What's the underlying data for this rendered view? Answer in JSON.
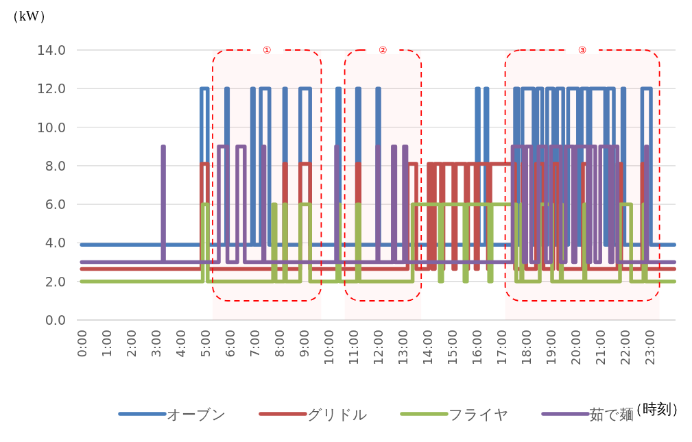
{
  "chart_data": {
    "type": "line",
    "ylabel": "（kW）",
    "xlabel": "（時刻）",
    "xlim": [
      -0.2,
      24.05
    ],
    "ylim": [
      0,
      14
    ],
    "xticks": [
      {
        "value": 0,
        "label": "0:00"
      },
      {
        "value": 1,
        "label": "1:00"
      },
      {
        "value": 2,
        "label": "2:00"
      },
      {
        "value": 3,
        "label": "3:00"
      },
      {
        "value": 4,
        "label": "4:00"
      },
      {
        "value": 5,
        "label": "5:00"
      },
      {
        "value": 6,
        "label": "6:00"
      },
      {
        "value": 7,
        "label": "7:00"
      },
      {
        "value": 8,
        "label": "8:00"
      },
      {
        "value": 9,
        "label": "9:00"
      },
      {
        "value": 10,
        "label": "10:00"
      },
      {
        "value": 11,
        "label": "11:00"
      },
      {
        "value": 12,
        "label": "12:00"
      },
      {
        "value": 13,
        "label": "13:00"
      },
      {
        "value": 14,
        "label": "14:00"
      },
      {
        "value": 15,
        "label": "15:00"
      },
      {
        "value": 16,
        "label": "16:00"
      },
      {
        "value": 17,
        "label": "17:00"
      },
      {
        "value": 18,
        "label": "18:00"
      },
      {
        "value": 19,
        "label": "19:00"
      },
      {
        "value": 20,
        "label": "20:00"
      },
      {
        "value": 21,
        "label": "21:00"
      },
      {
        "value": 22,
        "label": "22:00"
      },
      {
        "value": 23,
        "label": "23:00"
      }
    ],
    "yticks": [
      {
        "value": 0,
        "label": "0.0"
      },
      {
        "value": 2,
        "label": "2.0"
      },
      {
        "value": 4,
        "label": "4.0"
      },
      {
        "value": 6,
        "label": "6.0"
      },
      {
        "value": 8,
        "label": "8.0"
      },
      {
        "value": 10,
        "label": "10.0"
      },
      {
        "value": 12,
        "label": "12.0"
      },
      {
        "value": 14,
        "label": "14.0"
      }
    ],
    "grid": "y",
    "legend": "bottom",
    "line_style": "solid",
    "bands": [
      {
        "axis": "x",
        "from": 5.3,
        "to": 9.7,
        "label": "①",
        "color": "#ff0000"
      },
      {
        "axis": "x",
        "from": 10.65,
        "to": 13.75,
        "label": "②",
        "color": "#ff0000"
      },
      {
        "axis": "x",
        "from": 17.15,
        "to": 23.4,
        "label": "③",
        "color": "#ff0000"
      }
    ],
    "series": [
      {
        "name": "オーブン",
        "color": "#4a7ebb",
        "x": [
          0,
          4.85,
          4.85,
          5.1,
          5.1,
          5.85,
          5.85,
          5.92,
          5.92,
          6.9,
          6.9,
          6.97,
          6.97,
          7.25,
          7.25,
          7.6,
          7.6,
          8.2,
          8.2,
          8.27,
          8.27,
          8.85,
          8.85,
          9.25,
          9.25,
          10.35,
          10.35,
          10.45,
          10.45,
          11.15,
          11.15,
          11.25,
          11.25,
          11.97,
          11.97,
          12.05,
          12.05,
          16.0,
          16.0,
          16.08,
          16.08,
          16.35,
          16.35,
          16.43,
          16.43,
          17.55,
          17.55,
          17.68,
          17.68,
          17.85,
          17.85,
          18.3,
          18.3,
          18.45,
          18.45,
          18.65,
          18.65,
          18.85,
          18.85,
          19.1,
          19.1,
          19.25,
          19.25,
          19.5,
          19.5,
          19.7,
          19.7,
          20.1,
          20.1,
          20.25,
          20.25,
          20.5,
          20.5,
          20.6,
          20.6,
          21.2,
          21.2,
          21.3,
          21.3,
          21.55,
          21.55,
          21.9,
          21.9,
          21.98,
          21.98,
          22.7,
          22.7,
          23.05,
          23.05,
          24
        ],
        "values": [
          3.9,
          3.9,
          12,
          12,
          3.9,
          3.9,
          12,
          12,
          3.9,
          3.9,
          12,
          12,
          3.9,
          3.9,
          12,
          12,
          3.9,
          3.9,
          12,
          12,
          3.9,
          3.9,
          12,
          12,
          3.9,
          3.9,
          12,
          12,
          3.9,
          3.9,
          12,
          12,
          3.9,
          3.9,
          12,
          12,
          3.9,
          3.9,
          12,
          12,
          3.9,
          3.9,
          12,
          12,
          3.9,
          3.9,
          12,
          12,
          3.9,
          3.9,
          12,
          12,
          3.9,
          3.9,
          12,
          12,
          3.9,
          3.9,
          12,
          12,
          3.9,
          3.9,
          12,
          12,
          3.9,
          3.9,
          12,
          12,
          3.9,
          3.9,
          12,
          12,
          3.9,
          3.9,
          12,
          12,
          3.9,
          3.9,
          12,
          12,
          3.9,
          3.9,
          12,
          12,
          3.9,
          3.9,
          12,
          12,
          3.9,
          3.9
        ]
      },
      {
        "name": "グリドル",
        "color": "#c0504d",
        "x": [
          0,
          4.85,
          4.85,
          5.1,
          5.1,
          8.2,
          8.2,
          8.27,
          8.27,
          8.85,
          8.85,
          9.25,
          9.25,
          11.15,
          11.15,
          11.25,
          11.25,
          13.2,
          13.2,
          13.55,
          13.55,
          14.05,
          14.05,
          14.2,
          14.2,
          14.3,
          14.3,
          14.55,
          14.55,
          14.65,
          14.65,
          15.05,
          15.05,
          15.15,
          15.15,
          15.55,
          15.55,
          15.65,
          15.65,
          15.95,
          15.95,
          16.05,
          16.05,
          16.45,
          16.45,
          16.55,
          16.55,
          17.55,
          17.55,
          17.85,
          17.85,
          18.0,
          18.0,
          18.4,
          18.4,
          18.7,
          18.7,
          19.1,
          19.1,
          19.3,
          19.3,
          20.3,
          20.3,
          20.5,
          20.5,
          21.7,
          21.7,
          21.85,
          21.85,
          22.7,
          22.7,
          22.85,
          22.85,
          24
        ],
        "values": [
          2.65,
          2.65,
          8.1,
          8.1,
          2.65,
          2.65,
          8.1,
          8.1,
          2.65,
          2.65,
          8.1,
          8.1,
          2.65,
          2.65,
          8.1,
          8.1,
          2.65,
          2.65,
          8.1,
          8.1,
          2.65,
          2.65,
          8.1,
          8.1,
          2.65,
          2.65,
          8.1,
          8.1,
          2.65,
          2.65,
          8.1,
          8.1,
          2.65,
          2.65,
          8.1,
          8.1,
          2.65,
          2.65,
          8.1,
          8.1,
          2.65,
          2.65,
          8.1,
          8.1,
          2.65,
          2.65,
          8.1,
          8.1,
          2.65,
          2.65,
          8.1,
          8.1,
          2.65,
          2.65,
          8.1,
          8.1,
          2.65,
          2.65,
          8.1,
          8.1,
          2.65,
          2.65,
          8.1,
          8.1,
          2.65,
          2.65,
          8.1,
          8.1,
          2.65,
          2.65,
          8.1,
          8.1,
          2.65,
          2.65
        ]
      },
      {
        "name": "フライヤ",
        "color": "#9bbb59",
        "x": [
          0,
          4.9,
          4.9,
          5.1,
          5.1,
          7.75,
          7.75,
          7.85,
          7.85,
          8.2,
          8.2,
          8.27,
          8.27,
          8.85,
          8.85,
          9.25,
          9.25,
          10.35,
          10.35,
          10.45,
          10.45,
          11.15,
          11.15,
          11.25,
          11.25,
          13.4,
          13.4,
          14.5,
          14.5,
          14.6,
          14.6,
          15.5,
          15.5,
          15.6,
          15.6,
          16.5,
          16.5,
          16.6,
          16.6,
          17.6,
          17.6,
          17.8,
          17.8,
          17.85,
          17.85,
          18.55,
          18.55,
          19.05,
          19.05,
          19.4,
          19.4,
          19.45,
          19.45,
          20.35,
          20.35,
          20.4,
          20.4,
          21.8,
          21.8,
          22.25,
          22.25,
          22.75,
          22.75,
          22.85,
          22.85,
          24
        ],
        "values": [
          2,
          2,
          6,
          6,
          2,
          2,
          6,
          6,
          2,
          2,
          6,
          6,
          2,
          2,
          6,
          6,
          2,
          2,
          6,
          6,
          2,
          2,
          6,
          6,
          2,
          2,
          6,
          6,
          2,
          2,
          6,
          6,
          2,
          2,
          6,
          6,
          2,
          2,
          6,
          6,
          2,
          2,
          6,
          6,
          2,
          2,
          6,
          6,
          2,
          2,
          6,
          6,
          2,
          2,
          6,
          6,
          2,
          2,
          6,
          6,
          2,
          2,
          6,
          6,
          2,
          2
        ]
      },
      {
        "name": "茹で麺",
        "color": "#8064a2",
        "x": [
          0,
          3.28,
          3.28,
          3.33,
          3.33,
          5.55,
          5.55,
          5.9,
          5.9,
          6.3,
          6.3,
          6.6,
          6.6,
          7.35,
          7.35,
          7.4,
          7.4,
          10.3,
          10.3,
          10.35,
          10.35,
          11.97,
          11.97,
          12.02,
          12.02,
          12.6,
          12.6,
          12.7,
          12.7,
          13.05,
          13.05,
          13.15,
          13.15,
          17.45,
          17.45,
          17.9,
          17.9,
          18.0,
          18.0,
          18.2,
          18.2,
          18.5,
          18.5,
          18.8,
          18.8,
          19.0,
          19.0,
          19.4,
          19.4,
          19.6,
          19.6,
          19.9,
          19.9,
          20.0,
          20.0,
          20.5,
          20.5,
          20.6,
          20.6,
          20.8,
          20.8,
          21.0,
          21.0,
          21.4,
          21.4,
          21.5,
          21.5,
          21.7,
          21.7,
          22.85,
          22.85,
          22.9,
          22.9,
          24
        ],
        "values": [
          3,
          3,
          9,
          9,
          3,
          3,
          9,
          9,
          3,
          3,
          9,
          9,
          3,
          3,
          9,
          9,
          3,
          3,
          9,
          9,
          3,
          3,
          9,
          9,
          3,
          3,
          9,
          9,
          3,
          3,
          9,
          9,
          3,
          3,
          9,
          9,
          3,
          3,
          9,
          9,
          3,
          3,
          9,
          9,
          3,
          3,
          9,
          9,
          3,
          3,
          9,
          9,
          3,
          3,
          9,
          9,
          3,
          3,
          9,
          9,
          3,
          3,
          9,
          9,
          3,
          3,
          9,
          9,
          3,
          3,
          9,
          9,
          3,
          3
        ]
      }
    ]
  }
}
